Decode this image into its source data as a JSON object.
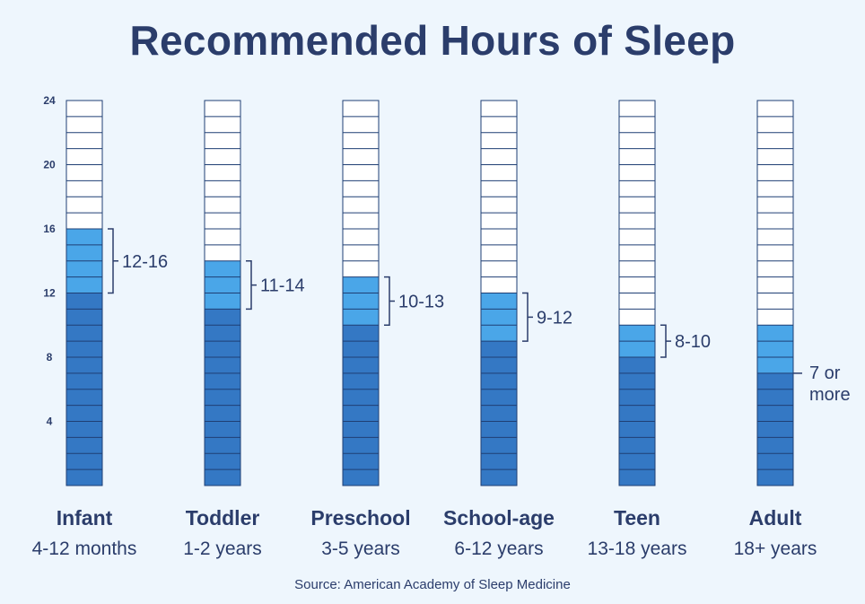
{
  "chart_data": {
    "type": "bar",
    "title": "Recommended Hours of Sleep",
    "source": "Source: American Academy of Sleep Medicine",
    "ylim": [
      0,
      24
    ],
    "y_ticks": [
      4,
      8,
      12,
      16,
      20,
      24
    ],
    "y_tick_labels": [
      "4",
      "8",
      "12",
      "16",
      "20",
      "24"
    ],
    "categories": [
      "Infant",
      "Toddler",
      "Preschool",
      "School-age",
      "Teen",
      "Adult"
    ],
    "age_ranges": [
      "4-12 months",
      "1-2 years",
      "3-5 years",
      "6-12 years",
      "13-18 years",
      "18+ years"
    ],
    "range_labels": [
      "12-16",
      "11-14",
      "10-13",
      "9-12",
      "8-10",
      "7 or more"
    ],
    "series": [
      {
        "name": "",
        "values": [
          12,
          11,
          10,
          9,
          8,
          7
        ]
      },
      {
        "name": "",
        "values": [
          16,
          14,
          13,
          12,
          10,
          10
        ]
      }
    ],
    "colors": {
      "base": "#3478c4",
      "range": "#4aa6e8",
      "empty": "#ffffff",
      "grid_line": "#1f3f74",
      "text": "#2b3d6b"
    }
  }
}
